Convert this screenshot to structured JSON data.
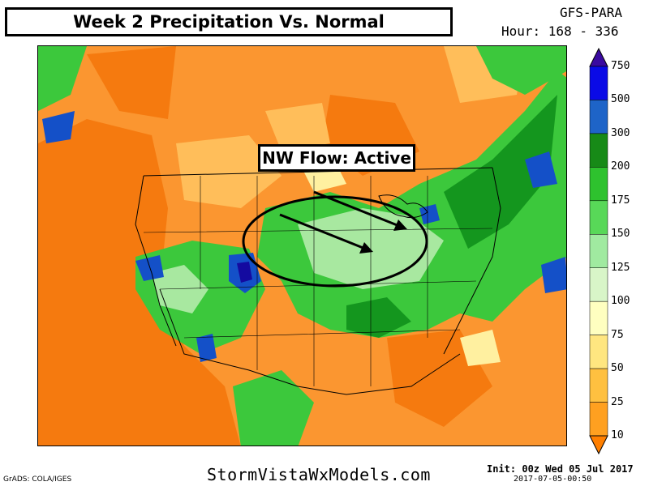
{
  "title": "Week 2 Precipitation Vs. Normal",
  "model": {
    "name": "GFS-PARA",
    "hours": "Hour: 168 - 336"
  },
  "annotation": {
    "text": "NW Flow: Active"
  },
  "legend": {
    "levels": [
      "10",
      "25",
      "50",
      "75",
      "100",
      "125",
      "150",
      "175",
      "200",
      "300",
      "500",
      "750"
    ],
    "colors": [
      "#ff7f00",
      "#ffa020",
      "#ffc040",
      "#ffe680",
      "#ffffc0",
      "#d8f5c8",
      "#a0eaa0",
      "#58d858",
      "#2ec22e",
      "#178a17",
      "#1e64c8",
      "#0a0ae6",
      "#3a0aa0"
    ]
  },
  "map_colors": {
    "orange_dark": "#f57a0f",
    "orange": "#fb9630",
    "orange_light": "#ffbe5a",
    "yellow": "#fff0a0",
    "green_light": "#a8e8a0",
    "green": "#3cc83c",
    "green_dark": "#14961e",
    "blue": "#1450c8",
    "navy": "#140aa0"
  },
  "footer": {
    "left": "GrADS: COLA/IGES",
    "center": "StormVistaWxModels.com",
    "init": "Init: 00z Wed 05 Jul 2017",
    "stamp": "2017-07-05-00:50"
  }
}
